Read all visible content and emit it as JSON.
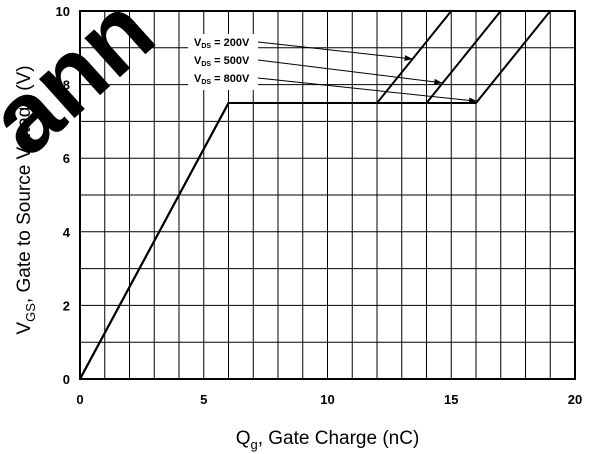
{
  "chart_data": {
    "type": "line",
    "xlabel": {
      "main": "Q",
      "sub": "g",
      "rest": ", Gate Charge (nC)"
    },
    "ylabel": {
      "main": "V",
      "sub": "GS",
      "rest": ", Gate to Source Voltage (V)"
    },
    "xlim": [
      0,
      20
    ],
    "ylim": [
      0,
      10
    ],
    "xticks": [
      0,
      5,
      10,
      15,
      20
    ],
    "yticks": [
      0,
      2,
      4,
      6,
      8,
      10
    ],
    "grid": true,
    "series": [
      {
        "name": "VDS = 200V",
        "label": {
          "v": "V",
          "sub": "DS",
          "rest": " = 200V"
        },
        "x": [
          0,
          6,
          12,
          15
        ],
        "y": [
          0,
          7.5,
          7.5,
          10
        ]
      },
      {
        "name": "VDS = 500V",
        "label": {
          "v": "V",
          "sub": "DS",
          "rest": " = 500V"
        },
        "x": [
          0,
          6,
          14,
          17
        ],
        "y": [
          0,
          7.5,
          7.5,
          10
        ]
      },
      {
        "name": "VDS = 800V",
        "label": {
          "v": "V",
          "sub": "DS",
          "rest": " = 800V"
        },
        "x": [
          0,
          6,
          16,
          19
        ],
        "y": [
          0,
          7.5,
          7.5,
          10
        ]
      }
    ],
    "annotations": [
      {
        "series": 0,
        "target": [
          13.4,
          8.7
        ]
      },
      {
        "series": 1,
        "target": [
          14.6,
          8.05
        ]
      },
      {
        "series": 2,
        "target": [
          16.0,
          7.55
        ]
      }
    ],
    "watermark": "ann"
  }
}
